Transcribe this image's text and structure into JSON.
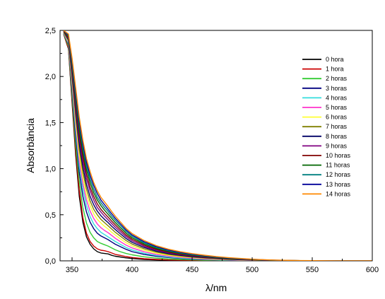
{
  "chart_data": {
    "type": "line",
    "title": "",
    "xlabel": "λ/nm",
    "ylabel": "Absorbância",
    "xlim": [
      340,
      600
    ],
    "ylim": [
      0,
      2.5
    ],
    "xticks": [
      350,
      400,
      450,
      500,
      550,
      600
    ],
    "xtick_labels": [
      "350",
      "400",
      "450",
      "500",
      "550",
      "600"
    ],
    "yticks": [
      0,
      0.5,
      1.0,
      1.5,
      2.0,
      2.5
    ],
    "ytick_labels": [
      "0,0",
      "0,5",
      "1,0",
      "1,5",
      "2,0",
      "2,5"
    ],
    "grid": false,
    "legend_position": "top-right",
    "x": [
      343,
      347,
      350,
      353,
      356,
      359,
      362,
      365,
      368,
      371,
      374,
      377,
      380,
      383,
      386,
      390,
      395,
      400,
      410,
      420,
      430,
      440,
      450,
      460,
      470,
      480,
      490,
      500,
      510,
      520,
      540,
      570,
      600
    ],
    "series": [
      {
        "name": "0 hora",
        "color": "#000000",
        "values": [
          2.46,
          2.3,
          1.72,
          1.15,
          0.7,
          0.42,
          0.26,
          0.18,
          0.13,
          0.1,
          0.085,
          0.08,
          0.075,
          0.06,
          0.05,
          0.042,
          0.032,
          0.025,
          0.015,
          0.01,
          0.007,
          0.005,
          0.004,
          0.003,
          0.002,
          0.001,
          0.001,
          0.0,
          0.0,
          0.0,
          0.0,
          0.0,
          0.0
        ]
      },
      {
        "name": "1 hora",
        "color": "#cc0000",
        "values": [
          2.46,
          2.31,
          1.75,
          1.2,
          0.76,
          0.47,
          0.3,
          0.21,
          0.16,
          0.13,
          0.115,
          0.11,
          0.1,
          0.085,
          0.07,
          0.06,
          0.046,
          0.036,
          0.023,
          0.015,
          0.01,
          0.008,
          0.006,
          0.004,
          0.003,
          0.002,
          0.001,
          0.001,
          0.0,
          0.0,
          0.0,
          0.0,
          0.0
        ]
      },
      {
        "name": "2 horas",
        "color": "#33cc33",
        "values": [
          2.47,
          2.33,
          1.8,
          1.27,
          0.86,
          0.58,
          0.41,
          0.31,
          0.25,
          0.21,
          0.19,
          0.175,
          0.16,
          0.14,
          0.12,
          0.1,
          0.08,
          0.065,
          0.044,
          0.03,
          0.021,
          0.015,
          0.011,
          0.008,
          0.006,
          0.004,
          0.003,
          0.002,
          0.001,
          0.0,
          0.0,
          0.0,
          0.0
        ]
      },
      {
        "name": "3 horas",
        "color": "#000080",
        "values": [
          2.47,
          2.35,
          1.86,
          1.36,
          0.96,
          0.7,
          0.53,
          0.42,
          0.35,
          0.3,
          0.27,
          0.25,
          0.23,
          0.205,
          0.18,
          0.155,
          0.125,
          0.1,
          0.07,
          0.05,
          0.036,
          0.026,
          0.019,
          0.014,
          0.01,
          0.007,
          0.005,
          0.003,
          0.002,
          0.001,
          0.0,
          0.0,
          0.0
        ]
      },
      {
        "name": "4 horas",
        "color": "#33dddd",
        "values": [
          2.47,
          2.36,
          1.9,
          1.42,
          1.03,
          0.78,
          0.6,
          0.48,
          0.4,
          0.35,
          0.31,
          0.285,
          0.26,
          0.235,
          0.21,
          0.18,
          0.145,
          0.118,
          0.082,
          0.058,
          0.042,
          0.031,
          0.023,
          0.017,
          0.012,
          0.009,
          0.006,
          0.004,
          0.002,
          0.001,
          0.0,
          0.0,
          0.0
        ]
      },
      {
        "name": "5 horas",
        "color": "#ff33cc",
        "values": [
          2.48,
          2.37,
          1.93,
          1.47,
          1.09,
          0.84,
          0.66,
          0.54,
          0.46,
          0.4,
          0.36,
          0.33,
          0.305,
          0.275,
          0.245,
          0.21,
          0.17,
          0.14,
          0.098,
          0.07,
          0.051,
          0.038,
          0.028,
          0.021,
          0.015,
          0.011,
          0.008,
          0.005,
          0.003,
          0.002,
          0.0,
          0.0,
          0.0
        ]
      },
      {
        "name": "6 horas",
        "color": "#ffff33",
        "values": [
          2.48,
          2.38,
          1.96,
          1.52,
          1.15,
          0.9,
          0.72,
          0.6,
          0.51,
          0.45,
          0.41,
          0.375,
          0.345,
          0.31,
          0.28,
          0.24,
          0.196,
          0.162,
          0.115,
          0.083,
          0.061,
          0.046,
          0.035,
          0.026,
          0.019,
          0.014,
          0.01,
          0.007,
          0.004,
          0.002,
          0.0,
          0.0,
          0.0
        ]
      },
      {
        "name": "7 horas",
        "color": "#808000",
        "values": [
          2.48,
          2.39,
          1.99,
          1.57,
          1.21,
          0.96,
          0.78,
          0.65,
          0.56,
          0.5,
          0.45,
          0.415,
          0.38,
          0.345,
          0.31,
          0.27,
          0.22,
          0.182,
          0.13,
          0.095,
          0.07,
          0.053,
          0.04,
          0.03,
          0.022,
          0.016,
          0.012,
          0.008,
          0.005,
          0.003,
          0.001,
          0.0,
          0.0
        ]
      },
      {
        "name": "8 horas",
        "color": "#000066",
        "values": [
          2.49,
          2.4,
          2.02,
          1.62,
          1.27,
          1.02,
          0.83,
          0.7,
          0.61,
          0.54,
          0.49,
          0.45,
          0.415,
          0.375,
          0.34,
          0.295,
          0.242,
          0.2,
          0.145,
          0.106,
          0.079,
          0.06,
          0.046,
          0.035,
          0.026,
          0.019,
          0.014,
          0.01,
          0.006,
          0.004,
          0.001,
          0.0,
          0.0
        ]
      },
      {
        "name": "9 horas",
        "color": "#800080",
        "values": [
          2.49,
          2.41,
          2.05,
          1.67,
          1.33,
          1.08,
          0.89,
          0.76,
          0.66,
          0.58,
          0.53,
          0.485,
          0.445,
          0.405,
          0.365,
          0.318,
          0.262,
          0.218,
          0.158,
          0.117,
          0.088,
          0.067,
          0.052,
          0.04,
          0.03,
          0.022,
          0.016,
          0.011,
          0.007,
          0.004,
          0.001,
          0.0,
          0.0
        ]
      },
      {
        "name": "10 horas",
        "color": "#800000",
        "values": [
          2.49,
          2.42,
          2.08,
          1.72,
          1.38,
          1.13,
          0.94,
          0.8,
          0.7,
          0.62,
          0.56,
          0.515,
          0.475,
          0.43,
          0.39,
          0.34,
          0.28,
          0.234,
          0.17,
          0.126,
          0.095,
          0.073,
          0.057,
          0.044,
          0.033,
          0.024,
          0.018,
          0.012,
          0.008,
          0.005,
          0.001,
          0.0,
          0.0
        ]
      },
      {
        "name": "11 horas",
        "color": "#006600",
        "values": [
          2.5,
          2.43,
          2.11,
          1.76,
          1.43,
          1.18,
          0.99,
          0.85,
          0.74,
          0.66,
          0.6,
          0.55,
          0.505,
          0.46,
          0.415,
          0.362,
          0.3,
          0.25,
          0.183,
          0.136,
          0.103,
          0.08,
          0.062,
          0.048,
          0.036,
          0.027,
          0.02,
          0.014,
          0.009,
          0.005,
          0.002,
          0.0,
          0.0
        ]
      },
      {
        "name": "12 horas",
        "color": "#008080",
        "values": [
          2.5,
          2.44,
          2.14,
          1.8,
          1.48,
          1.23,
          1.03,
          0.89,
          0.78,
          0.69,
          0.63,
          0.58,
          0.535,
          0.485,
          0.44,
          0.385,
          0.318,
          0.266,
          0.195,
          0.146,
          0.111,
          0.086,
          0.067,
          0.052,
          0.04,
          0.03,
          0.022,
          0.015,
          0.01,
          0.006,
          0.002,
          0.0,
          0.0
        ]
      },
      {
        "name": "13 horas",
        "color": "#000099",
        "values": [
          2.5,
          2.45,
          2.17,
          1.84,
          1.52,
          1.27,
          1.07,
          0.93,
          0.82,
          0.73,
          0.66,
          0.61,
          0.56,
          0.51,
          0.462,
          0.405,
          0.335,
          0.281,
          0.207,
          0.155,
          0.118,
          0.092,
          0.072,
          0.056,
          0.043,
          0.032,
          0.024,
          0.017,
          0.011,
          0.007,
          0.002,
          0.0,
          0.0
        ]
      },
      {
        "name": "14 horas",
        "color": "#ff8800",
        "values": [
          2.5,
          2.46,
          2.2,
          1.88,
          1.56,
          1.31,
          1.11,
          0.97,
          0.85,
          0.76,
          0.69,
          0.64,
          0.59,
          0.535,
          0.485,
          0.425,
          0.352,
          0.296,
          0.22,
          0.166,
          0.127,
          0.099,
          0.078,
          0.061,
          0.047,
          0.035,
          0.026,
          0.018,
          0.012,
          0.008,
          0.003,
          0.001,
          0.0
        ]
      }
    ]
  }
}
